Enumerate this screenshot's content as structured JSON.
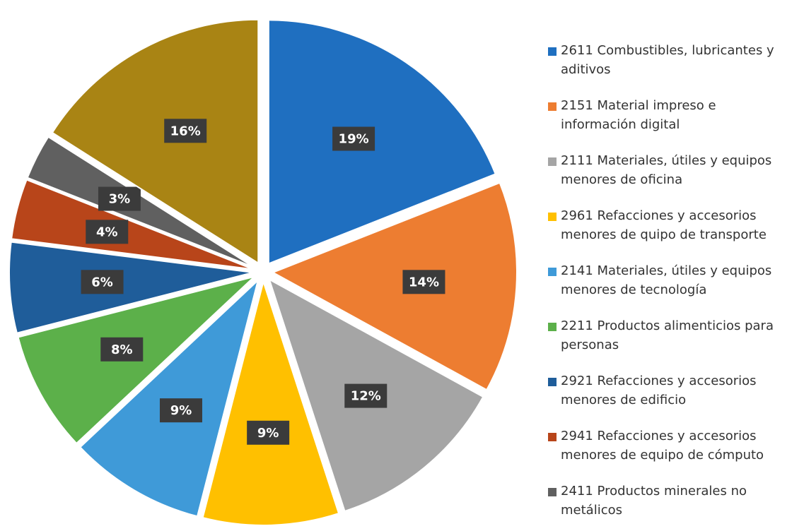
{
  "chart_data": {
    "type": "pie",
    "categories": [
      "2611 Combustibles, lubricantes y aditivos",
      "2151 Material impreso e información digital",
      "2111 Materiales, útiles y equipos menores de oficina",
      "2961 Refacciones y accesorios menores de quipo de transporte",
      "2141 Materiales, útiles y equipos menores de tecnología",
      "2211 Productos alimenticios para personas",
      "2921 Refacciones y accesorios menores de edificio",
      "2941 Refacciones y accesorios menores de equipo de cómputo",
      "2411 Productos minerales no metálicos",
      null
    ],
    "values": [
      19,
      14,
      12,
      9,
      9,
      8,
      6,
      4,
      3,
      16
    ],
    "value_labels": [
      "19%",
      "14%",
      "12%",
      "9%",
      "9%",
      "8%",
      "6%",
      "4%",
      "3%",
      "16%"
    ],
    "colors": [
      "#1f6fc0",
      "#ed7d31",
      "#a5a5a5",
      "#ffc000",
      "#3f9ad8",
      "#5cb04a",
      "#1f5d9a",
      "#b8451a",
      "#606060",
      "#a98414"
    ],
    "legend": "right"
  }
}
